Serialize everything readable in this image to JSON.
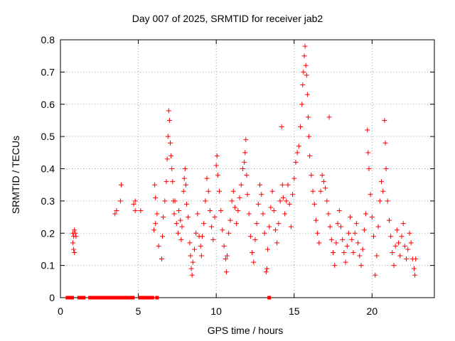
{
  "chart_data": {
    "type": "scatter",
    "title": "Day 007 of 2025, SRMTID for receiver jab2",
    "xlabel": "GPS time / hours",
    "ylabel": "SRMTID / TECUs",
    "xlim": [
      0,
      24
    ],
    "ylim": [
      0,
      0.8
    ],
    "xticks": [
      0,
      5,
      10,
      15,
      20
    ],
    "yticks": [
      0,
      0.1,
      0.2,
      0.3,
      0.4,
      0.5,
      0.6,
      0.7,
      0.8
    ],
    "grid": true,
    "marker": "+",
    "color": "#ff0000",
    "zero_markers": [
      0.45,
      0.6,
      0.75,
      1.2,
      1.35,
      1.5,
      1.9,
      2.05,
      2.2,
      2.35,
      2.55,
      2.7,
      2.85,
      3.0,
      3.15,
      3.3,
      3.45,
      3.6,
      3.75,
      3.9,
      4.05,
      4.2,
      4.35,
      4.5,
      4.65,
      5.1,
      5.25,
      5.4,
      5.6,
      5.75,
      5.9,
      6.2,
      13.4
    ],
    "series": [
      {
        "name": "jab2",
        "points": [
          [
            0.8,
            0.2
          ],
          [
            0.85,
            0.19
          ],
          [
            0.9,
            0.21
          ],
          [
            0.8,
            0.17
          ],
          [
            0.85,
            0.15
          ],
          [
            0.9,
            0.14
          ],
          [
            0.95,
            0.2
          ],
          [
            1.0,
            0.19
          ],
          [
            3.5,
            0.26
          ],
          [
            3.6,
            0.27
          ],
          [
            3.85,
            0.3
          ],
          [
            3.9,
            0.35
          ],
          [
            4.7,
            0.29
          ],
          [
            4.8,
            0.3
          ],
          [
            4.8,
            0.27
          ],
          [
            5.15,
            0.27
          ],
          [
            6.05,
            0.35
          ],
          [
            6.1,
            0.31
          ],
          [
            6.2,
            0.26
          ],
          [
            6.0,
            0.21
          ],
          [
            6.1,
            0.23
          ],
          [
            6.3,
            0.16
          ],
          [
            6.5,
            0.12
          ],
          [
            6.55,
            0.19
          ],
          [
            6.6,
            0.25
          ],
          [
            6.7,
            0.3
          ],
          [
            6.8,
            0.36
          ],
          [
            6.85,
            0.43
          ],
          [
            6.9,
            0.5
          ],
          [
            6.95,
            0.58
          ],
          [
            7.0,
            0.55
          ],
          [
            7.05,
            0.48
          ],
          [
            7.1,
            0.44
          ],
          [
            7.15,
            0.4
          ],
          [
            7.2,
            0.36
          ],
          [
            7.25,
            0.3
          ],
          [
            7.3,
            0.26
          ],
          [
            7.35,
            0.3
          ],
          [
            7.45,
            0.23
          ],
          [
            7.55,
            0.2
          ],
          [
            7.6,
            0.27
          ],
          [
            7.7,
            0.24
          ],
          [
            7.75,
            0.18
          ],
          [
            7.8,
            0.22
          ],
          [
            7.9,
            0.33
          ],
          [
            7.95,
            0.37
          ],
          [
            8.0,
            0.4
          ],
          [
            8.05,
            0.35
          ],
          [
            8.1,
            0.29
          ],
          [
            8.2,
            0.25
          ],
          [
            8.3,
            0.17
          ],
          [
            8.35,
            0.13
          ],
          [
            8.4,
            0.09
          ],
          [
            8.45,
            0.07
          ],
          [
            8.5,
            0.11
          ],
          [
            8.6,
            0.15
          ],
          [
            8.7,
            0.2
          ],
          [
            8.8,
            0.26
          ],
          [
            8.9,
            0.19
          ],
          [
            9.0,
            0.16
          ],
          [
            9.05,
            0.13
          ],
          [
            9.1,
            0.19
          ],
          [
            9.2,
            0.23
          ],
          [
            9.3,
            0.3
          ],
          [
            9.4,
            0.37
          ],
          [
            9.5,
            0.33
          ],
          [
            9.6,
            0.27
          ],
          [
            9.7,
            0.22
          ],
          [
            9.8,
            0.18
          ],
          [
            9.9,
            0.25
          ],
          [
            10.0,
            0.41
          ],
          [
            10.05,
            0.44
          ],
          [
            10.1,
            0.38
          ],
          [
            10.2,
            0.33
          ],
          [
            10.3,
            0.27
          ],
          [
            10.4,
            0.21
          ],
          [
            10.5,
            0.16
          ],
          [
            10.6,
            0.12
          ],
          [
            10.65,
            0.08
          ],
          [
            10.7,
            0.13
          ],
          [
            10.8,
            0.2
          ],
          [
            10.9,
            0.24
          ],
          [
            11.0,
            0.3
          ],
          [
            11.1,
            0.33
          ],
          [
            11.2,
            0.28
          ],
          [
            11.3,
            0.23
          ],
          [
            11.4,
            0.27
          ],
          [
            11.5,
            0.31
          ],
          [
            11.6,
            0.35
          ],
          [
            11.7,
            0.4
          ],
          [
            11.8,
            0.42
          ],
          [
            11.85,
            0.45
          ],
          [
            11.9,
            0.49
          ],
          [
            11.95,
            0.38
          ],
          [
            12.0,
            0.32
          ],
          [
            12.1,
            0.26
          ],
          [
            12.2,
            0.19
          ],
          [
            12.3,
            0.14
          ],
          [
            12.4,
            0.11
          ],
          [
            12.5,
            0.18
          ],
          [
            12.6,
            0.23
          ],
          [
            12.7,
            0.29
          ],
          [
            12.8,
            0.35
          ],
          [
            12.9,
            0.32
          ],
          [
            13.0,
            0.26
          ],
          [
            13.1,
            0.2
          ],
          [
            13.2,
            0.08
          ],
          [
            13.25,
            0.09
          ],
          [
            13.3,
            0.15
          ],
          [
            13.4,
            0.22
          ],
          [
            13.5,
            0.28
          ],
          [
            13.6,
            0.33
          ],
          [
            13.7,
            0.27
          ],
          [
            13.8,
            0.21
          ],
          [
            13.9,
            0.17
          ],
          [
            14.0,
            0.23
          ],
          [
            14.1,
            0.3
          ],
          [
            14.2,
            0.53
          ],
          [
            14.25,
            0.35
          ],
          [
            14.3,
            0.31
          ],
          [
            14.4,
            0.26
          ],
          [
            14.5,
            0.3
          ],
          [
            14.6,
            0.35
          ],
          [
            14.7,
            0.29
          ],
          [
            14.8,
            0.22
          ],
          [
            14.9,
            0.32
          ],
          [
            15.0,
            0.37
          ],
          [
            15.1,
            0.42
          ],
          [
            15.2,
            0.45
          ],
          [
            15.3,
            0.47
          ],
          [
            15.4,
            0.53
          ],
          [
            15.5,
            0.6
          ],
          [
            15.55,
            0.66
          ],
          [
            15.6,
            0.7
          ],
          [
            15.65,
            0.75
          ],
          [
            15.7,
            0.78
          ],
          [
            15.75,
            0.72
          ],
          [
            15.8,
            0.69
          ],
          [
            15.85,
            0.63
          ],
          [
            15.9,
            0.56
          ],
          [
            15.95,
            0.5
          ],
          [
            16.0,
            0.44
          ],
          [
            16.1,
            0.38
          ],
          [
            16.2,
            0.33
          ],
          [
            16.3,
            0.29
          ],
          [
            16.4,
            0.24
          ],
          [
            16.5,
            0.2
          ],
          [
            16.6,
            0.17
          ],
          [
            16.7,
            0.33
          ],
          [
            16.8,
            0.38
          ],
          [
            16.9,
            0.36
          ],
          [
            17.0,
            0.34
          ],
          [
            17.1,
            0.3
          ],
          [
            17.2,
            0.26
          ],
          [
            17.25,
            0.56
          ],
          [
            17.3,
            0.22
          ],
          [
            17.4,
            0.18
          ],
          [
            17.5,
            0.14
          ],
          [
            17.6,
            0.1
          ],
          [
            17.7,
            0.17
          ],
          [
            17.8,
            0.23
          ],
          [
            17.9,
            0.27
          ],
          [
            18.0,
            0.22
          ],
          [
            18.1,
            0.18
          ],
          [
            18.2,
            0.14
          ],
          [
            18.3,
            0.11
          ],
          [
            18.4,
            0.16
          ],
          [
            18.5,
            0.2
          ],
          [
            18.6,
            0.25
          ],
          [
            18.7,
            0.18
          ],
          [
            18.8,
            0.14
          ],
          [
            18.9,
            0.2
          ],
          [
            19.0,
            0.23
          ],
          [
            19.1,
            0.17
          ],
          [
            19.2,
            0.13
          ],
          [
            19.3,
            0.1
          ],
          [
            19.4,
            0.15
          ],
          [
            19.5,
            0.21
          ],
          [
            19.6,
            0.26
          ],
          [
            19.7,
            0.52
          ],
          [
            19.75,
            0.45
          ],
          [
            19.8,
            0.4
          ],
          [
            19.9,
            0.32
          ],
          [
            20.0,
            0.25
          ],
          [
            20.1,
            0.19
          ],
          [
            20.2,
            0.07
          ],
          [
            20.3,
            0.13
          ],
          [
            20.4,
            0.22
          ],
          [
            20.5,
            0.3
          ],
          [
            20.6,
            0.36
          ],
          [
            20.7,
            0.33
          ],
          [
            20.8,
            0.55
          ],
          [
            20.85,
            0.48
          ],
          [
            20.9,
            0.4
          ],
          [
            21.0,
            0.3
          ],
          [
            21.1,
            0.24
          ],
          [
            21.2,
            0.19
          ],
          [
            21.3,
            0.14
          ],
          [
            21.4,
            0.1
          ],
          [
            21.5,
            0.16
          ],
          [
            21.6,
            0.21
          ],
          [
            21.7,
            0.17
          ],
          [
            21.8,
            0.13
          ],
          [
            21.9,
            0.19
          ],
          [
            22.0,
            0.23
          ],
          [
            22.1,
            0.16
          ],
          [
            22.2,
            0.12
          ],
          [
            22.3,
            0.15
          ],
          [
            22.4,
            0.2
          ],
          [
            22.5,
            0.17
          ],
          [
            22.6,
            0.12
          ],
          [
            22.7,
            0.09
          ],
          [
            22.75,
            0.07
          ],
          [
            22.8,
            0.12
          ]
        ]
      }
    ]
  }
}
